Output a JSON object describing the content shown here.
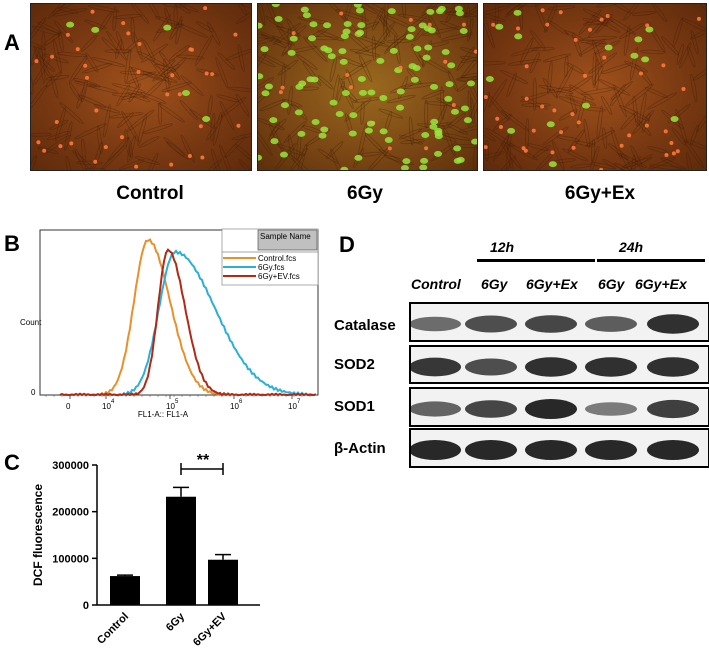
{
  "panels": {
    "a": "A",
    "b": "B",
    "c": "C",
    "d": "D"
  },
  "panel_a": {
    "labels": [
      "Control",
      "6Gy",
      "6Gy+Ex"
    ]
  },
  "panel_b": {
    "ylabel": "Count",
    "xlabel": "FL1-A:: FL1-A",
    "y_zero": "0",
    "ticks": [
      "0",
      "10",
      "10",
      "10",
      "10"
    ],
    "tick_exps": [
      "",
      "4",
      "5",
      "6",
      "7"
    ],
    "legend_header": "Sample Name",
    "legend": [
      {
        "name": "Control.fcs",
        "color": "#e8902c"
      },
      {
        "name": "6Gy.fcs",
        "color": "#2ab0d8"
      },
      {
        "name": "6Gy+EV.fcs",
        "color": "#b02a14"
      }
    ]
  },
  "chart_data": {
    "type": "bar",
    "categories": [
      "Control",
      "6Gy",
      "6Gy+EV"
    ],
    "values": [
      62000,
      232000,
      97000
    ],
    "errors": [
      2000,
      20000,
      11000
    ],
    "ylabel": "DCF fluorescence",
    "ylim": [
      0,
      300000
    ],
    "yticks": [
      "0",
      "100000",
      "200000",
      "300000"
    ],
    "significance": {
      "between": [
        "6Gy",
        "6Gy+EV"
      ],
      "label": "**"
    }
  },
  "panel_d": {
    "time_labels": [
      "12h",
      "24h"
    ],
    "lanes": [
      "Control",
      "6Gy",
      "6Gy+Ex",
      "6Gy",
      "6Gy+Ex"
    ],
    "proteins": [
      "Catalase",
      "SOD2",
      "SOD1",
      "β-Actin"
    ]
  }
}
